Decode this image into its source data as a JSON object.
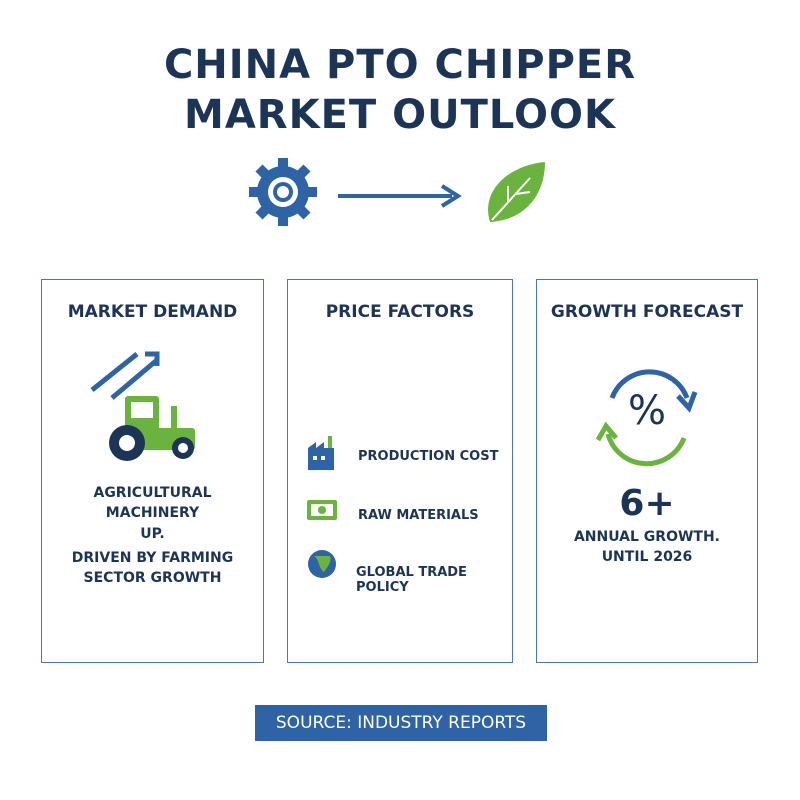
{
  "header": {
    "title": [
      "CHINA PTO CHIPPER",
      "MARKET OUTLOOK"
    ]
  },
  "cards": [
    {
      "title": "MARKET DEMAND",
      "lines": [
        "AGRICULTURAL",
        "MACHINERY",
        "UP.",
        "DRIVEN BY FARMING",
        "SECTOR GROWTH"
      ]
    },
    {
      "title": "PRICE FACTORS",
      "items": [
        "PRODUCTION COST",
        "RAW MATERIALS",
        "GLOBAL TRADE POLICY"
      ]
    },
    {
      "title": "GROWTH FORECAST",
      "symbol": "%",
      "figure": "6+",
      "lines": [
        "ANNUAL GROWTH.",
        "UNTIL 2026"
      ]
    }
  ],
  "source": "SOURCE: INDUSTRY REPORTS"
}
